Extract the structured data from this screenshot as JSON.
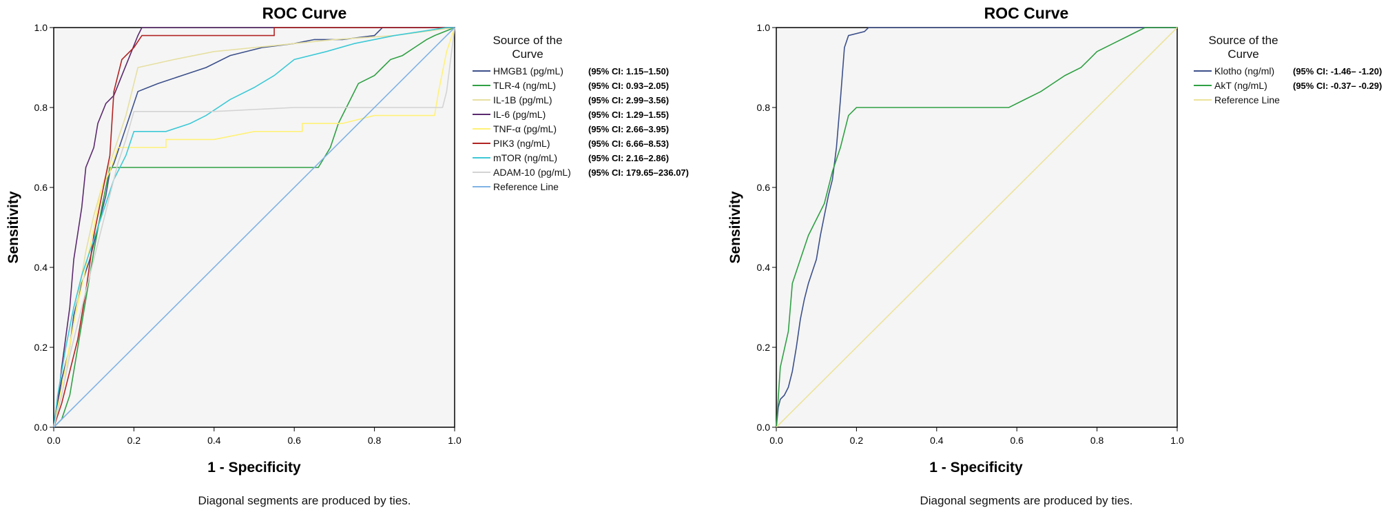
{
  "chart_data": [
    {
      "type": "line",
      "title": "ROC Curve",
      "xlabel": "1 - Specificity",
      "ylabel": "Sensitivity",
      "xlim": [
        0,
        1
      ],
      "ylim": [
        0,
        1
      ],
      "x_ticks": [
        "0.0",
        "0.2",
        "0.4",
        "0.6",
        "0.8",
        "1.0"
      ],
      "y_ticks": [
        "0.0",
        "0.2",
        "0.4",
        "0.6",
        "0.8",
        "1.0"
      ],
      "grid": false,
      "legend_position": "right",
      "legend_title": [
        "Source of the",
        "Curve"
      ],
      "footnote": "Diagonal segments are produced by ties.",
      "series": [
        {
          "name": "HMGB1 (pg/mL)",
          "ci": "(95% CI: 1.15–1.50)",
          "color": "#3b4f8a",
          "points": [
            [
              0,
              0
            ],
            [
              0.01,
              0.05
            ],
            [
              0.02,
              0.12
            ],
            [
              0.04,
              0.2
            ],
            [
              0.05,
              0.28
            ],
            [
              0.07,
              0.36
            ],
            [
              0.09,
              0.42
            ],
            [
              0.11,
              0.5
            ],
            [
              0.13,
              0.58
            ],
            [
              0.14,
              0.64
            ],
            [
              0.15,
              0.66
            ],
            [
              0.21,
              0.84
            ],
            [
              0.26,
              0.86
            ],
            [
              0.32,
              0.88
            ],
            [
              0.38,
              0.9
            ],
            [
              0.44,
              0.93
            ],
            [
              0.52,
              0.95
            ],
            [
              0.6,
              0.96
            ],
            [
              0.65,
              0.97
            ],
            [
              0.72,
              0.97
            ],
            [
              0.8,
              0.98
            ],
            [
              0.82,
              1
            ],
            [
              1,
              1
            ]
          ]
        },
        {
          "name": "TLR-4 (ng/mL)",
          "ci": "(95% CI: 0.93–2.05)",
          "color": "#2ea043",
          "points": [
            [
              0,
              0
            ],
            [
              0.02,
              0.02
            ],
            [
              0.04,
              0.08
            ],
            [
              0.06,
              0.2
            ],
            [
              0.08,
              0.32
            ],
            [
              0.1,
              0.44
            ],
            [
              0.12,
              0.55
            ],
            [
              0.14,
              0.65
            ],
            [
              0.66,
              0.65
            ],
            [
              0.69,
              0.7
            ],
            [
              0.71,
              0.76
            ],
            [
              0.74,
              0.82
            ],
            [
              0.76,
              0.86
            ],
            [
              0.8,
              0.88
            ],
            [
              0.82,
              0.9
            ],
            [
              0.84,
              0.92
            ],
            [
              0.87,
              0.93
            ],
            [
              0.9,
              0.95
            ],
            [
              0.93,
              0.97
            ],
            [
              0.95,
              0.98
            ],
            [
              1,
              1
            ]
          ]
        },
        {
          "name": "IL-1B (pg/mL)",
          "ci": "(95% CI: 2.99–3.56)",
          "color": "#e6dfa0",
          "points": [
            [
              0,
              0
            ],
            [
              0.02,
              0.1
            ],
            [
              0.04,
              0.2
            ],
            [
              0.06,
              0.32
            ],
            [
              0.08,
              0.44
            ],
            [
              0.1,
              0.53
            ],
            [
              0.12,
              0.6
            ],
            [
              0.14,
              0.66
            ],
            [
              0.18,
              0.78
            ],
            [
              0.21,
              0.9
            ],
            [
              0.3,
              0.92
            ],
            [
              0.4,
              0.94
            ],
            [
              0.5,
              0.95
            ],
            [
              0.6,
              0.96
            ],
            [
              0.7,
              0.97
            ],
            [
              0.85,
              0.98
            ],
            [
              1,
              1
            ]
          ]
        },
        {
          "name": "IL-6 (pg/mL)",
          "ci": "(95% CI: 1.29–1.55)",
          "color": "#5b2a6e",
          "points": [
            [
              0,
              0
            ],
            [
              0.01,
              0.06
            ],
            [
              0.02,
              0.15
            ],
            [
              0.04,
              0.3
            ],
            [
              0.05,
              0.42
            ],
            [
              0.07,
              0.55
            ],
            [
              0.08,
              0.65
            ],
            [
              0.1,
              0.7
            ],
            [
              0.11,
              0.76
            ],
            [
              0.13,
              0.81
            ],
            [
              0.15,
              0.83
            ],
            [
              0.17,
              0.88
            ],
            [
              0.19,
              0.93
            ],
            [
              0.21,
              0.98
            ],
            [
              0.22,
              1
            ],
            [
              1,
              1
            ]
          ]
        },
        {
          "name": "TNF-α (pg/mL)",
          "ci": "(95% CI: 2.66–3.95)",
          "color": "#fff176",
          "points": [
            [
              0,
              0
            ],
            [
              0.02,
              0.1
            ],
            [
              0.05,
              0.26
            ],
            [
              0.08,
              0.4
            ],
            [
              0.1,
              0.5
            ],
            [
              0.12,
              0.6
            ],
            [
              0.14,
              0.64
            ],
            [
              0.16,
              0.7
            ],
            [
              0.28,
              0.7
            ],
            [
              0.28,
              0.72
            ],
            [
              0.4,
              0.72
            ],
            [
              0.5,
              0.74
            ],
            [
              0.62,
              0.74
            ],
            [
              0.62,
              0.76
            ],
            [
              0.72,
              0.76
            ],
            [
              0.8,
              0.78
            ],
            [
              0.95,
              0.78
            ],
            [
              0.96,
              0.84
            ],
            [
              0.98,
              0.94
            ],
            [
              1,
              1
            ]
          ]
        },
        {
          "name": "PIK3 (ng/mL)",
          "ci": "(95% CI: 6.66–8.53)",
          "color": "#b22222",
          "points": [
            [
              0,
              0
            ],
            [
              0.02,
              0.06
            ],
            [
              0.04,
              0.14
            ],
            [
              0.06,
              0.22
            ],
            [
              0.08,
              0.34
            ],
            [
              0.1,
              0.48
            ],
            [
              0.12,
              0.58
            ],
            [
              0.14,
              0.68
            ],
            [
              0.15,
              0.84
            ],
            [
              0.17,
              0.92
            ],
            [
              0.2,
              0.95
            ],
            [
              0.22,
              0.98
            ],
            [
              0.55,
              0.98
            ],
            [
              0.55,
              1
            ],
            [
              1,
              1
            ]
          ]
        },
        {
          "name": "mTOR (ng/mL)",
          "ci": "(95% CI: 2.16–2.86)",
          "color": "#3cc9d6",
          "points": [
            [
              0,
              0
            ],
            [
              0.01,
              0.08
            ],
            [
              0.03,
              0.2
            ],
            [
              0.05,
              0.3
            ],
            [
              0.07,
              0.38
            ],
            [
              0.09,
              0.44
            ],
            [
              0.11,
              0.5
            ],
            [
              0.13,
              0.56
            ],
            [
              0.15,
              0.62
            ],
            [
              0.18,
              0.68
            ],
            [
              0.2,
              0.74
            ],
            [
              0.28,
              0.74
            ],
            [
              0.34,
              0.76
            ],
            [
              0.38,
              0.78
            ],
            [
              0.44,
              0.82
            ],
            [
              0.5,
              0.85
            ],
            [
              0.55,
              0.88
            ],
            [
              0.6,
              0.92
            ],
            [
              0.68,
              0.94
            ],
            [
              0.75,
              0.96
            ],
            [
              0.85,
              0.98
            ],
            [
              0.98,
              1
            ],
            [
              1,
              1
            ]
          ]
        },
        {
          "name": "ADAM-10 (pg/mL)",
          "ci": "(95% CI: 179.65–236.07)",
          "color": "#d3d3d3",
          "points": [
            [
              0,
              0
            ],
            [
              0.02,
              0.08
            ],
            [
              0.04,
              0.18
            ],
            [
              0.06,
              0.26
            ],
            [
              0.08,
              0.34
            ],
            [
              0.1,
              0.42
            ],
            [
              0.12,
              0.5
            ],
            [
              0.14,
              0.58
            ],
            [
              0.16,
              0.66
            ],
            [
              0.18,
              0.72
            ],
            [
              0.2,
              0.79
            ],
            [
              0.4,
              0.79
            ],
            [
              0.6,
              0.8
            ],
            [
              0.8,
              0.8
            ],
            [
              0.97,
              0.8
            ],
            [
              0.98,
              0.84
            ],
            [
              0.99,
              0.92
            ],
            [
              1,
              1
            ]
          ]
        },
        {
          "name": "Reference Line",
          "ci": "",
          "color": "#7fb2e5",
          "points": [
            [
              0,
              0
            ],
            [
              1,
              1
            ]
          ]
        }
      ]
    },
    {
      "type": "line",
      "title": "ROC Curve",
      "xlabel": "1 - Specificity",
      "ylabel": "Sensitivity",
      "xlim": [
        0,
        1
      ],
      "ylim": [
        0,
        1
      ],
      "x_ticks": [
        "0.0",
        "0.2",
        "0.4",
        "0.6",
        "0.8",
        "1.0"
      ],
      "y_ticks": [
        "0.0",
        "0.2",
        "0.4",
        "0.6",
        "0.8",
        "1.0"
      ],
      "grid": false,
      "legend_position": "right",
      "legend_title": [
        "Source of the",
        "Curve"
      ],
      "footnote": "Diagonal segments are produced by ties.",
      "series": [
        {
          "name": "Klotho (ng/ml)",
          "ci": "(95% CI: -1.46– -1.20)",
          "color": "#3b4f8a",
          "points": [
            [
              0,
              0
            ],
            [
              0.005,
              0.05
            ],
            [
              0.01,
              0.07
            ],
            [
              0.02,
              0.08
            ],
            [
              0.03,
              0.1
            ],
            [
              0.04,
              0.14
            ],
            [
              0.05,
              0.2
            ],
            [
              0.06,
              0.27
            ],
            [
              0.07,
              0.32
            ],
            [
              0.08,
              0.36
            ],
            [
              0.09,
              0.39
            ],
            [
              0.1,
              0.42
            ],
            [
              0.11,
              0.48
            ],
            [
              0.12,
              0.53
            ],
            [
              0.13,
              0.58
            ],
            [
              0.14,
              0.62
            ],
            [
              0.15,
              0.7
            ],
            [
              0.16,
              0.82
            ],
            [
              0.17,
              0.95
            ],
            [
              0.18,
              0.98
            ],
            [
              0.22,
              0.99
            ],
            [
              0.23,
              1
            ],
            [
              1,
              1
            ]
          ]
        },
        {
          "name": "AkT (ng/mL)",
          "ci": "(95% CI: -0.37– -0.29)",
          "color": "#2ea043",
          "points": [
            [
              0,
              0
            ],
            [
              0.01,
              0.15
            ],
            [
              0.03,
              0.24
            ],
            [
              0.04,
              0.36
            ],
            [
              0.06,
              0.42
            ],
            [
              0.08,
              0.48
            ],
            [
              0.1,
              0.52
            ],
            [
              0.12,
              0.56
            ],
            [
              0.14,
              0.64
            ],
            [
              0.16,
              0.7
            ],
            [
              0.18,
              0.78
            ],
            [
              0.2,
              0.8
            ],
            [
              0.58,
              0.8
            ],
            [
              0.62,
              0.82
            ],
            [
              0.66,
              0.84
            ],
            [
              0.72,
              0.88
            ],
            [
              0.76,
              0.9
            ],
            [
              0.78,
              0.92
            ],
            [
              0.8,
              0.94
            ],
            [
              0.84,
              0.96
            ],
            [
              0.88,
              0.98
            ],
            [
              0.92,
              1
            ],
            [
              1,
              1
            ]
          ]
        },
        {
          "name": "Reference Line",
          "ci": "",
          "color": "#ece39a",
          "points": [
            [
              0,
              0
            ],
            [
              1,
              1
            ]
          ]
        }
      ]
    }
  ]
}
